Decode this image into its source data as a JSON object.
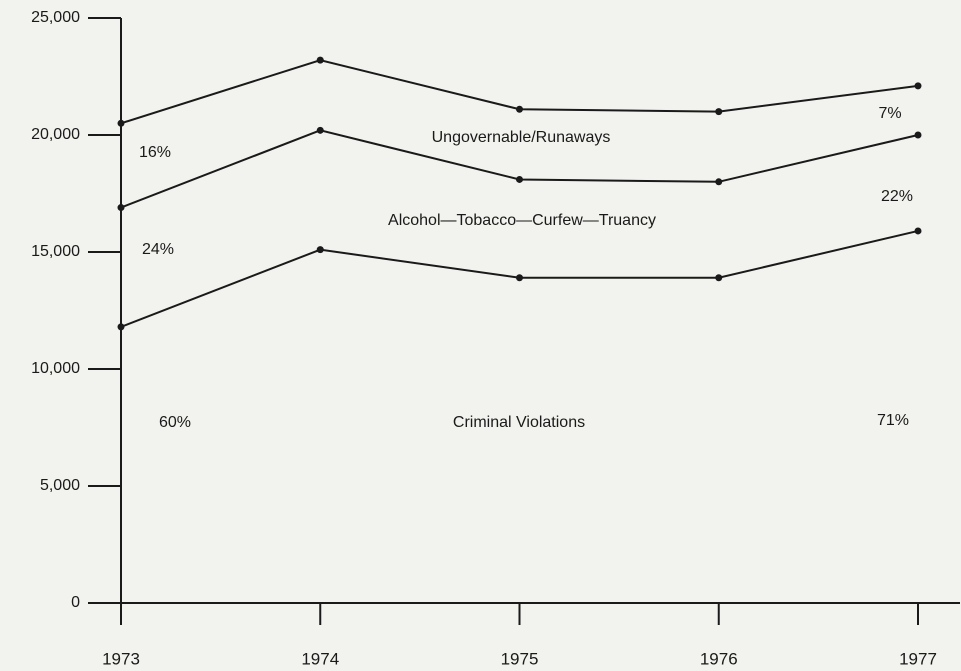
{
  "chart_data": {
    "type": "stacked_line",
    "categories": [
      "1973",
      "1974",
      "1975",
      "1976",
      "1977"
    ],
    "series": [
      {
        "name": "Criminal Violations",
        "color": "#1a1a1a",
        "values": [
          11800,
          15100,
          13900,
          13900,
          15900
        ]
      },
      {
        "name": "Alcohol—Tobacco—Curfew—Truancy",
        "color": "#1a1a1a",
        "values": [
          5100,
          5100,
          4200,
          4100,
          4100
        ]
      },
      {
        "name": "Ungovernable/Runaways",
        "color": "#1a1a1a",
        "values": [
          3600,
          3000,
          3000,
          3000,
          2100
        ]
      }
    ],
    "annotations": [
      "16%",
      "24%",
      "60%",
      "7%",
      "22%",
      "71%"
    ],
    "ylim": [
      0,
      25000
    ],
    "yticks": [
      0,
      {
        "value": 5000,
        "label": "5,000"
      },
      {
        "value": 10000,
        "label": "10,000"
      },
      {
        "value": 15000,
        "label": "15,000"
      },
      {
        "value": 20000,
        "label": "20,000"
      },
      {
        "value": 25000,
        "label": "25,000"
      }
    ]
  }
}
